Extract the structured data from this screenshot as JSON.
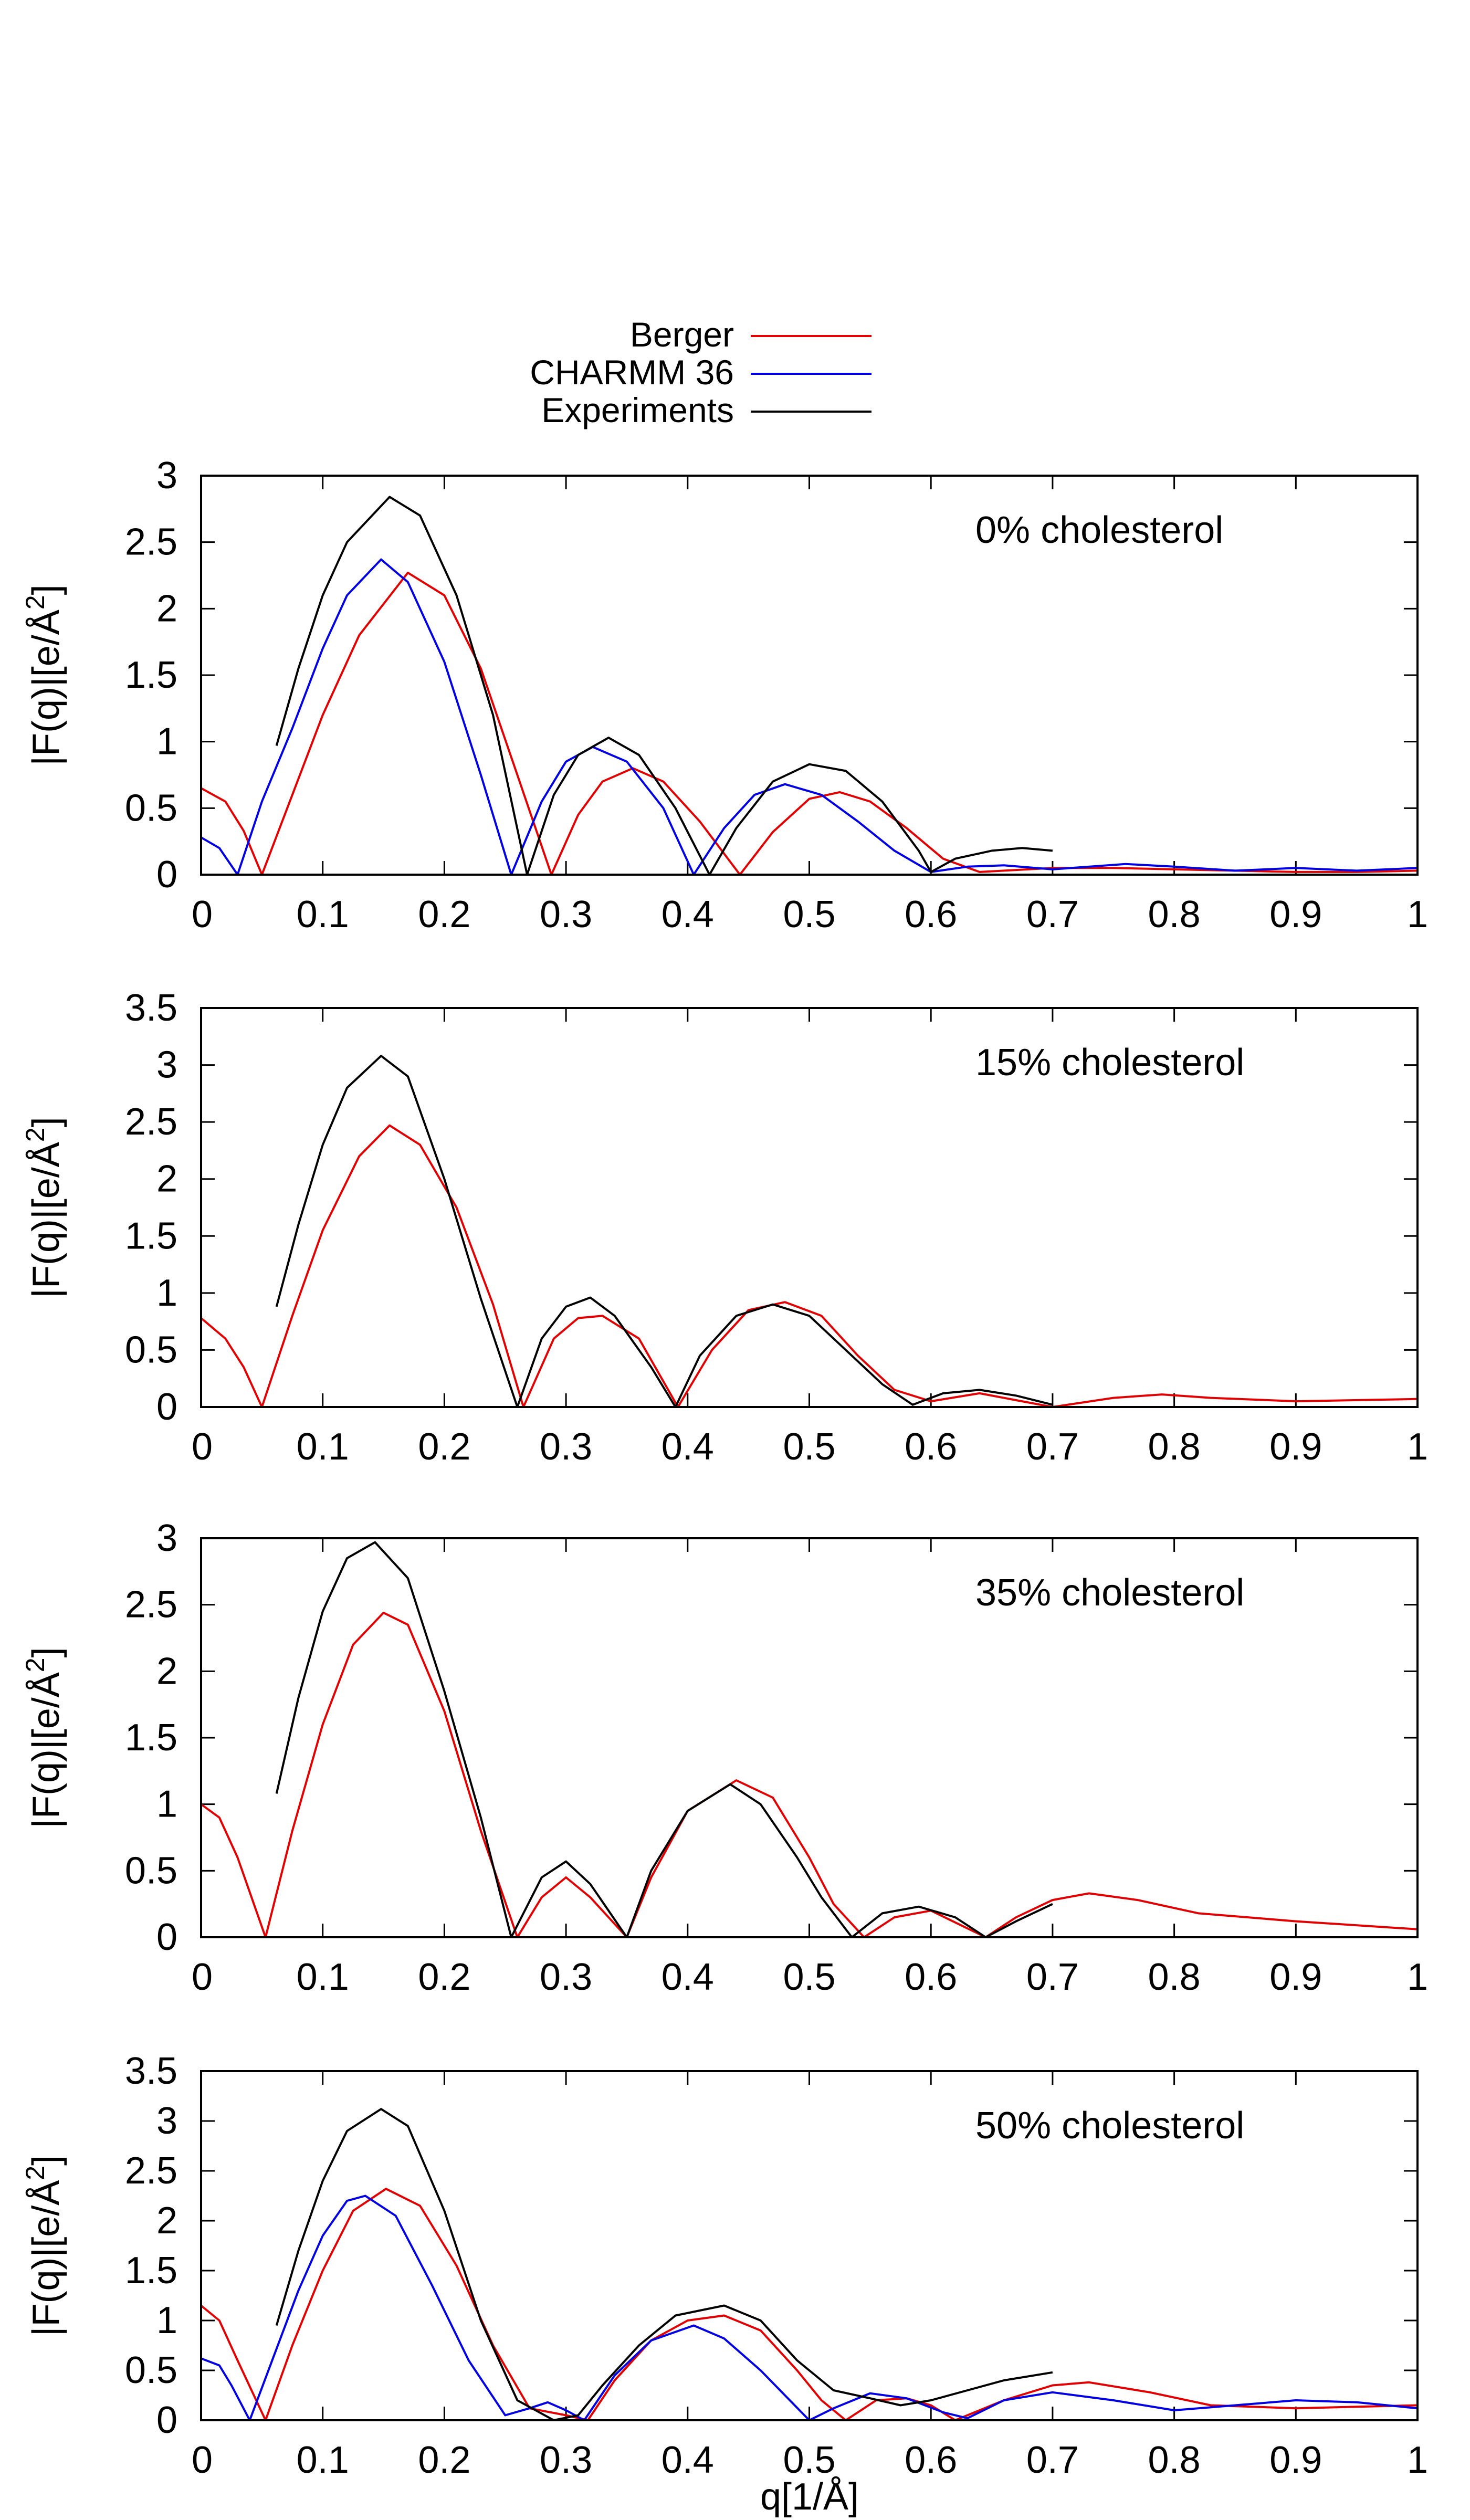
{
  "legend": [
    {
      "name": "Berger",
      "color": "#e00000"
    },
    {
      "name": "CHARMM 36",
      "color": "#0000e0"
    },
    {
      "name": "Experiments",
      "color": "#000000"
    }
  ],
  "xlabel": "q[1/Å]",
  "ylabel": "|F(q)|[e/Å",
  "ylabel_superscript": "2",
  "ylabel_suffix": "]",
  "chart_data": [
    {
      "type": "line",
      "annotation": "0% cholesterol",
      "ylabel": "|F(q)|[e/Å²]",
      "xlim": [
        0,
        1
      ],
      "ylim": [
        0,
        3
      ],
      "x_ticks": [
        0,
        0.1,
        0.2,
        0.3,
        0.4,
        0.5,
        0.6,
        0.7,
        0.8,
        0.9,
        1
      ],
      "y_ticks": [
        0,
        0.5,
        1,
        1.5,
        2,
        2.5,
        3
      ],
      "series": [
        {
          "name": "Berger",
          "color": "#e00000",
          "x": [
            0,
            0.02,
            0.035,
            0.05,
            0.075,
            0.1,
            0.13,
            0.17,
            0.2,
            0.23,
            0.26,
            0.288,
            0.31,
            0.33,
            0.355,
            0.38,
            0.41,
            0.443,
            0.47,
            0.5,
            0.525,
            0.55,
            0.58,
            0.61,
            0.64,
            0.68,
            0.7,
            0.75,
            0.8,
            0.85,
            0.9,
            0.95,
            1.0
          ],
          "y": [
            0.65,
            0.55,
            0.33,
            0.0,
            0.6,
            1.2,
            1.8,
            2.27,
            2.1,
            1.55,
            0.75,
            0.0,
            0.45,
            0.7,
            0.8,
            0.7,
            0.4,
            0.0,
            0.32,
            0.57,
            0.62,
            0.55,
            0.35,
            0.12,
            0.02,
            0.04,
            0.05,
            0.05,
            0.04,
            0.03,
            0.02,
            0.02,
            0.03
          ]
        },
        {
          "name": "CHARMM 36",
          "color": "#0000e0",
          "x": [
            0,
            0.015,
            0.03,
            0.05,
            0.075,
            0.1,
            0.12,
            0.148,
            0.17,
            0.2,
            0.23,
            0.255,
            0.28,
            0.3,
            0.322,
            0.35,
            0.38,
            0.405,
            0.43,
            0.455,
            0.48,
            0.51,
            0.54,
            0.57,
            0.6,
            0.63,
            0.66,
            0.7,
            0.76,
            0.8,
            0.85,
            0.9,
            0.95,
            1.0
          ],
          "y": [
            0.28,
            0.2,
            0.0,
            0.55,
            1.1,
            1.7,
            2.1,
            2.37,
            2.2,
            1.6,
            0.75,
            0.0,
            0.55,
            0.85,
            0.96,
            0.85,
            0.5,
            0.0,
            0.35,
            0.6,
            0.68,
            0.6,
            0.4,
            0.18,
            0.02,
            0.06,
            0.07,
            0.04,
            0.08,
            0.06,
            0.03,
            0.05,
            0.03,
            0.05
          ]
        },
        {
          "name": "Experiments",
          "color": "#000000",
          "x": [
            0.062,
            0.08,
            0.1,
            0.12,
            0.155,
            0.18,
            0.21,
            0.24,
            0.268,
            0.29,
            0.31,
            0.335,
            0.36,
            0.39,
            0.418,
            0.44,
            0.47,
            0.5,
            0.53,
            0.56,
            0.59,
            0.6,
            0.62,
            0.65,
            0.675,
            0.7
          ],
          "y": [
            0.97,
            1.55,
            2.1,
            2.5,
            2.84,
            2.7,
            2.1,
            1.2,
            0.0,
            0.6,
            0.9,
            1.03,
            0.9,
            0.5,
            0.0,
            0.35,
            0.7,
            0.83,
            0.78,
            0.55,
            0.18,
            0.02,
            0.12,
            0.18,
            0.2,
            0.18
          ]
        }
      ]
    },
    {
      "type": "line",
      "annotation": "15% cholesterol",
      "ylabel": "|F(q)|[e/Å²]",
      "xlim": [
        0,
        1
      ],
      "ylim": [
        0,
        3.5
      ],
      "x_ticks": [
        0,
        0.1,
        0.2,
        0.3,
        0.4,
        0.5,
        0.6,
        0.7,
        0.8,
        0.9,
        1
      ],
      "y_ticks": [
        0,
        0.5,
        1,
        1.5,
        2,
        2.5,
        3,
        3.5
      ],
      "series": [
        {
          "name": "Berger",
          "color": "#e00000",
          "x": [
            0,
            0.02,
            0.035,
            0.05,
            0.075,
            0.1,
            0.13,
            0.155,
            0.18,
            0.21,
            0.24,
            0.265,
            0.29,
            0.31,
            0.33,
            0.36,
            0.392,
            0.42,
            0.45,
            0.48,
            0.51,
            0.54,
            0.57,
            0.6,
            0.64,
            0.67,
            0.7,
            0.75,
            0.79,
            0.83,
            0.9,
            1.0
          ],
          "y": [
            0.78,
            0.6,
            0.35,
            0.0,
            0.8,
            1.55,
            2.2,
            2.47,
            2.3,
            1.75,
            0.9,
            0.0,
            0.6,
            0.78,
            0.8,
            0.6,
            0.0,
            0.5,
            0.85,
            0.92,
            0.8,
            0.45,
            0.15,
            0.05,
            0.12,
            0.06,
            0.0,
            0.08,
            0.11,
            0.08,
            0.05,
            0.07
          ]
        },
        {
          "name": "Experiments",
          "color": "#000000",
          "x": [
            0.062,
            0.08,
            0.1,
            0.12,
            0.148,
            0.17,
            0.2,
            0.23,
            0.26,
            0.28,
            0.3,
            0.32,
            0.34,
            0.37,
            0.39,
            0.41,
            0.44,
            0.47,
            0.5,
            0.53,
            0.56,
            0.585,
            0.61,
            0.64,
            0.67,
            0.7
          ],
          "y": [
            0.88,
            1.6,
            2.3,
            2.8,
            3.08,
            2.9,
            2.0,
            0.95,
            0.0,
            0.6,
            0.88,
            0.96,
            0.8,
            0.35,
            0.0,
            0.45,
            0.8,
            0.9,
            0.8,
            0.5,
            0.2,
            0.02,
            0.12,
            0.15,
            0.1,
            0.02
          ]
        }
      ]
    },
    {
      "type": "line",
      "annotation": "35% cholesterol",
      "ylabel": "|F(q)|[e/Å²]",
      "xlim": [
        0,
        1
      ],
      "ylim": [
        0,
        3
      ],
      "x_ticks": [
        0,
        0.1,
        0.2,
        0.3,
        0.4,
        0.5,
        0.6,
        0.7,
        0.8,
        0.9,
        1
      ],
      "y_ticks": [
        0,
        0.5,
        1,
        1.5,
        2,
        2.5,
        3
      ],
      "series": [
        {
          "name": "Berger",
          "color": "#e00000",
          "x": [
            0,
            0.015,
            0.03,
            0.053,
            0.075,
            0.1,
            0.125,
            0.15,
            0.17,
            0.2,
            0.23,
            0.26,
            0.28,
            0.3,
            0.32,
            0.35,
            0.37,
            0.4,
            0.44,
            0.47,
            0.5,
            0.52,
            0.545,
            0.57,
            0.6,
            0.645,
            0.67,
            0.7,
            0.73,
            0.77,
            0.82,
            0.9,
            1.0
          ],
          "y": [
            1.0,
            0.9,
            0.6,
            0.0,
            0.8,
            1.6,
            2.2,
            2.44,
            2.35,
            1.7,
            0.8,
            0.0,
            0.3,
            0.45,
            0.3,
            0.0,
            0.45,
            0.95,
            1.18,
            1.05,
            0.6,
            0.25,
            0.0,
            0.15,
            0.2,
            0.0,
            0.15,
            0.28,
            0.33,
            0.28,
            0.18,
            0.12,
            0.06
          ]
        },
        {
          "name": "Experiments",
          "color": "#000000",
          "x": [
            0.062,
            0.08,
            0.1,
            0.12,
            0.143,
            0.17,
            0.2,
            0.23,
            0.255,
            0.28,
            0.3,
            0.32,
            0.35,
            0.37,
            0.4,
            0.435,
            0.46,
            0.49,
            0.51,
            0.535,
            0.56,
            0.59,
            0.62,
            0.645,
            0.67,
            0.7
          ],
          "y": [
            1.08,
            1.8,
            2.45,
            2.85,
            2.97,
            2.7,
            1.85,
            0.9,
            0.0,
            0.45,
            0.57,
            0.4,
            0.0,
            0.5,
            0.95,
            1.15,
            1.0,
            0.6,
            0.3,
            0.0,
            0.18,
            0.23,
            0.15,
            0.0,
            0.12,
            0.25
          ]
        }
      ]
    },
    {
      "type": "line",
      "annotation": "50% cholesterol",
      "ylabel": "|F(q)|[e/Å²]",
      "xlabel": "q[1/Å]",
      "xlim": [
        0,
        1
      ],
      "ylim": [
        0,
        3.5
      ],
      "x_ticks": [
        0,
        0.1,
        0.2,
        0.3,
        0.4,
        0.5,
        0.6,
        0.7,
        0.8,
        0.9,
        1
      ],
      "y_ticks": [
        0,
        0.5,
        1,
        1.5,
        2,
        2.5,
        3,
        3.5
      ],
      "series": [
        {
          "name": "Berger",
          "color": "#e00000",
          "x": [
            0,
            0.015,
            0.03,
            0.053,
            0.075,
            0.1,
            0.125,
            0.152,
            0.18,
            0.21,
            0.24,
            0.27,
            0.3,
            0.318,
            0.34,
            0.37,
            0.4,
            0.43,
            0.46,
            0.49,
            0.51,
            0.53,
            0.555,
            0.58,
            0.6,
            0.62,
            0.66,
            0.7,
            0.73,
            0.78,
            0.83,
            0.9,
            1.0
          ],
          "y": [
            1.15,
            1.0,
            0.6,
            0.0,
            0.75,
            1.5,
            2.1,
            2.32,
            2.15,
            1.55,
            0.75,
            0.12,
            0.05,
            0.0,
            0.4,
            0.8,
            1.0,
            1.05,
            0.9,
            0.5,
            0.2,
            0.0,
            0.2,
            0.22,
            0.15,
            0.0,
            0.2,
            0.35,
            0.38,
            0.28,
            0.15,
            0.12,
            0.15
          ]
        },
        {
          "name": "CHARMM 36",
          "color": "#0000e0",
          "x": [
            0,
            0.015,
            0.025,
            0.04,
            0.06,
            0.08,
            0.1,
            0.12,
            0.135,
            0.16,
            0.19,
            0.22,
            0.25,
            0.27,
            0.285,
            0.3,
            0.315,
            0.34,
            0.37,
            0.405,
            0.43,
            0.46,
            0.5,
            0.52,
            0.55,
            0.58,
            0.61,
            0.63,
            0.66,
            0.7,
            0.75,
            0.8,
            0.85,
            0.9,
            0.95,
            1.0
          ],
          "y": [
            0.62,
            0.55,
            0.35,
            0.0,
            0.65,
            1.3,
            1.85,
            2.2,
            2.25,
            2.05,
            1.35,
            0.6,
            0.05,
            0.12,
            0.18,
            0.1,
            0.0,
            0.45,
            0.8,
            0.95,
            0.82,
            0.5,
            0.0,
            0.12,
            0.27,
            0.22,
            0.08,
            0.02,
            0.2,
            0.28,
            0.2,
            0.1,
            0.15,
            0.2,
            0.18,
            0.12
          ]
        },
        {
          "name": "Experiments",
          "color": "#000000",
          "x": [
            0.062,
            0.08,
            0.1,
            0.12,
            0.148,
            0.17,
            0.2,
            0.23,
            0.26,
            0.29,
            0.31,
            0.33,
            0.36,
            0.39,
            0.43,
            0.46,
            0.49,
            0.52,
            0.55,
            0.575,
            0.6,
            0.63,
            0.66,
            0.7
          ],
          "y": [
            0.95,
            1.7,
            2.4,
            2.9,
            3.12,
            2.95,
            2.1,
            1.0,
            0.2,
            0.0,
            0.05,
            0.35,
            0.75,
            1.05,
            1.15,
            1.0,
            0.6,
            0.3,
            0.22,
            0.15,
            0.2,
            0.3,
            0.4,
            0.48
          ]
        }
      ]
    }
  ]
}
